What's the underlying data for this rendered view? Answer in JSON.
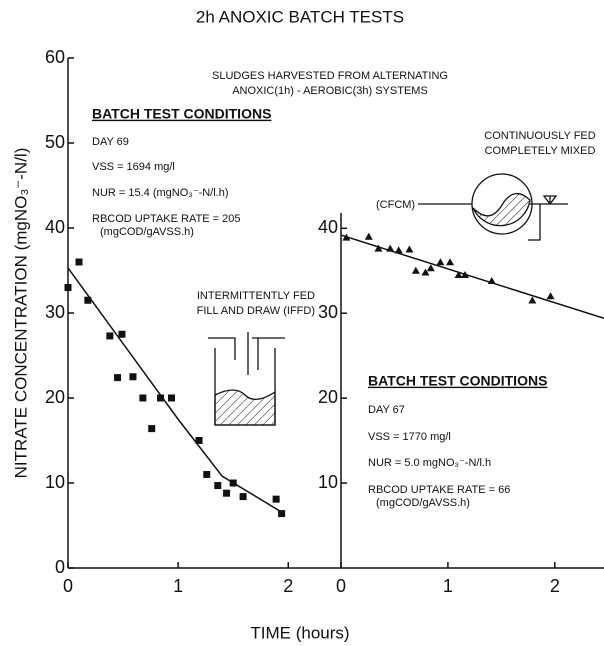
{
  "title": "2h ANOXIC BATCH TESTS",
  "y_label": "NITRATE CONCENTRATION   (mgNO₃⁻-N/l)",
  "x_label": "TIME  (hours)",
  "note": [
    "SLUDGES HARVESTED FROM ALTERNATING",
    "ANOXIC(1h) - AEROBIC(3h) SYSTEMS"
  ],
  "chart_data": [
    {
      "type": "scatter",
      "marker": "square",
      "color": "#111111",
      "xlim": [
        0,
        2.47
      ],
      "ylim": [
        0,
        60
      ],
      "xticks": [
        0,
        1,
        2
      ],
      "yticks": [
        0,
        10,
        20,
        30,
        40,
        50,
        60
      ],
      "x": [
        0,
        0.1,
        0.18,
        0.38,
        0.49,
        0.45,
        0.59,
        0.68,
        0.76,
        0.84,
        0.94,
        1.19,
        1.26,
        1.36,
        1.44,
        1.5,
        1.59,
        1.89,
        1.94
      ],
      "values": [
        33,
        36,
        31.5,
        27.3,
        27.5,
        22.4,
        22.5,
        20,
        16.4,
        20,
        20,
        15,
        11,
        9.7,
        8.8,
        10,
        8.4,
        8.1,
        6.4
      ],
      "fit": {
        "x": [
          0,
          1.0,
          1.4,
          1.95
        ],
        "values": [
          35.3,
          17.5,
          10.8,
          6.5
        ]
      },
      "label": [
        "INTERMITTENTLY FED",
        "FILL AND DRAW  (IFFD)"
      ],
      "conditions": {
        "heading": "BATCH TEST CONDITIONS",
        "lines": [
          "DAY 69",
          "VSS = 1694 mg/l",
          "NUR = 15.4 (mgNO₃⁻-N/l.h)",
          "RBCOD UPTAKE RATE = 205",
          "(mgCOD/gAVSS.h)"
        ]
      }
    },
    {
      "type": "scatter",
      "marker": "triangle",
      "color": "#111111",
      "xlim": [
        0,
        2.46
      ],
      "ylim": [
        0,
        41.8
      ],
      "xticks": [
        0,
        1,
        2
      ],
      "yticks": [
        10,
        20,
        30,
        40
      ],
      "x": [
        0.05,
        0.26,
        0.35,
        0.46,
        0.54,
        0.64,
        0.7,
        0.79,
        0.84,
        0.93,
        1.02,
        1.1,
        1.16,
        1.41,
        1.79,
        1.96
      ],
      "values": [
        38.9,
        39,
        37.6,
        37.6,
        37.4,
        37.5,
        35,
        34.8,
        35.3,
        36,
        36,
        34.5,
        34.5,
        33.8,
        31.5,
        32
      ],
      "fit": {
        "x": [
          0,
          2.46
        ],
        "values": [
          39.2,
          29.4
        ]
      },
      "label": [
        "CONTINUOUSLY FED",
        "COMPLETELY MIXED",
        "(CFCM)"
      ],
      "conditions": {
        "heading": "BATCH TEST CONDITIONS",
        "lines": [
          "DAY 67",
          "VSS = 1770 mg/l",
          "NUR = 5.0 mgNO₃⁻-N/l.h",
          "RBCOD UPTAKE RATE = 66",
          "(mgCOD/gAVSS.h)"
        ]
      }
    }
  ]
}
